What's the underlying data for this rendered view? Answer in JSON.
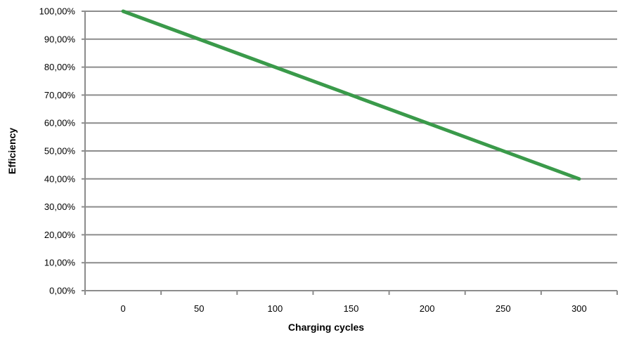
{
  "chart_data": {
    "type": "line",
    "xlabel": "Charging cycles",
    "ylabel": "Efficiency",
    "x": [
      0,
      300
    ],
    "x_ticks": [
      "0",
      "50",
      "100",
      "150",
      "200",
      "250",
      "300"
    ],
    "y_ticks": [
      "0,00%",
      "10,00%",
      "20,00%",
      "30,00%",
      "40,00%",
      "50,00%",
      "60,00%",
      "70,00%",
      "80,00%",
      "90,00%",
      "100,00%"
    ],
    "series": [
      {
        "values": [
          100,
          40
        ],
        "color": "#3a9a4a"
      }
    ],
    "xlim": [
      -25,
      325
    ],
    "ylim": [
      0,
      100
    ],
    "grid": "horizontal",
    "gridline_color": "#8c8c8c",
    "axis_color": "#8c8c8c"
  }
}
